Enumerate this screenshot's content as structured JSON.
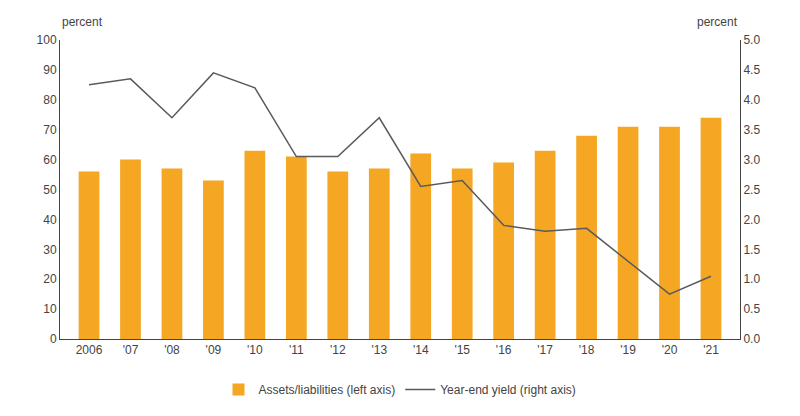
{
  "chart_data": {
    "type": "bar",
    "ylabel": "percent",
    "y2label": "percent",
    "x": [
      2006,
      2007,
      2008,
      2009,
      2010,
      2011,
      2012,
      2013,
      2014,
      2015,
      2016,
      2017,
      2018,
      2019,
      2020,
      2021
    ],
    "xlim": [
      2005.3,
      2021.7
    ],
    "xticks": [
      2006,
      {
        "value": 2007,
        "label": "'07"
      },
      {
        "value": 2008,
        "label": "'08"
      },
      {
        "value": 2009,
        "label": "'09"
      },
      {
        "value": 2010,
        "label": "'10"
      },
      {
        "value": 2011,
        "label": "'11"
      },
      {
        "value": 2012,
        "label": "'12"
      },
      {
        "value": 2013,
        "label": "'13"
      },
      {
        "value": 2014,
        "label": "'14"
      },
      {
        "value": 2015,
        "label": "'15"
      },
      {
        "value": 2016,
        "label": "'16"
      },
      {
        "value": 2017,
        "label": "'17"
      },
      {
        "value": 2018,
        "label": "'18"
      },
      {
        "value": 2019,
        "label": "'19"
      },
      {
        "value": 2020,
        "label": "'20"
      },
      {
        "value": 2021,
        "label": "'21"
      }
    ],
    "ylim": [
      0,
      100
    ],
    "yticks": [
      0,
      10,
      20,
      30,
      40,
      50,
      60,
      70,
      80,
      90,
      100
    ],
    "y2lim": [
      0.0,
      5.0
    ],
    "y2ticks": [
      {
        "value": 0.0,
        "label": "0.0"
      },
      0.5,
      {
        "value": 1.0,
        "label": "1.0"
      },
      1.5,
      {
        "value": 2.0,
        "label": "2.0"
      },
      2.5,
      {
        "value": 3.0,
        "label": "3.0"
      },
      3.5,
      {
        "value": 4.0,
        "label": "4.0"
      },
      4.5,
      {
        "value": 5.0,
        "label": "5.0"
      }
    ],
    "grid": false,
    "legend": "bottom",
    "series": [
      {
        "name": "Assets/liabilities (left axis)",
        "type": "bar",
        "color": "#F5A623",
        "values": [
          56,
          60,
          57,
          53,
          63,
          61,
          56,
          57,
          62,
          57,
          59,
          63,
          68,
          71,
          71,
          74
        ]
      },
      {
        "name": "Year-end yield (right axis)",
        "type": "line",
        "axis": "y2",
        "color": "#5a5a5a",
        "values": [
          4.25,
          4.35,
          3.7,
          4.45,
          4.2,
          3.05,
          3.05,
          3.7,
          2.55,
          2.65,
          1.9,
          1.8,
          1.85,
          1.3,
          0.75,
          1.05
        ]
      }
    ]
  }
}
